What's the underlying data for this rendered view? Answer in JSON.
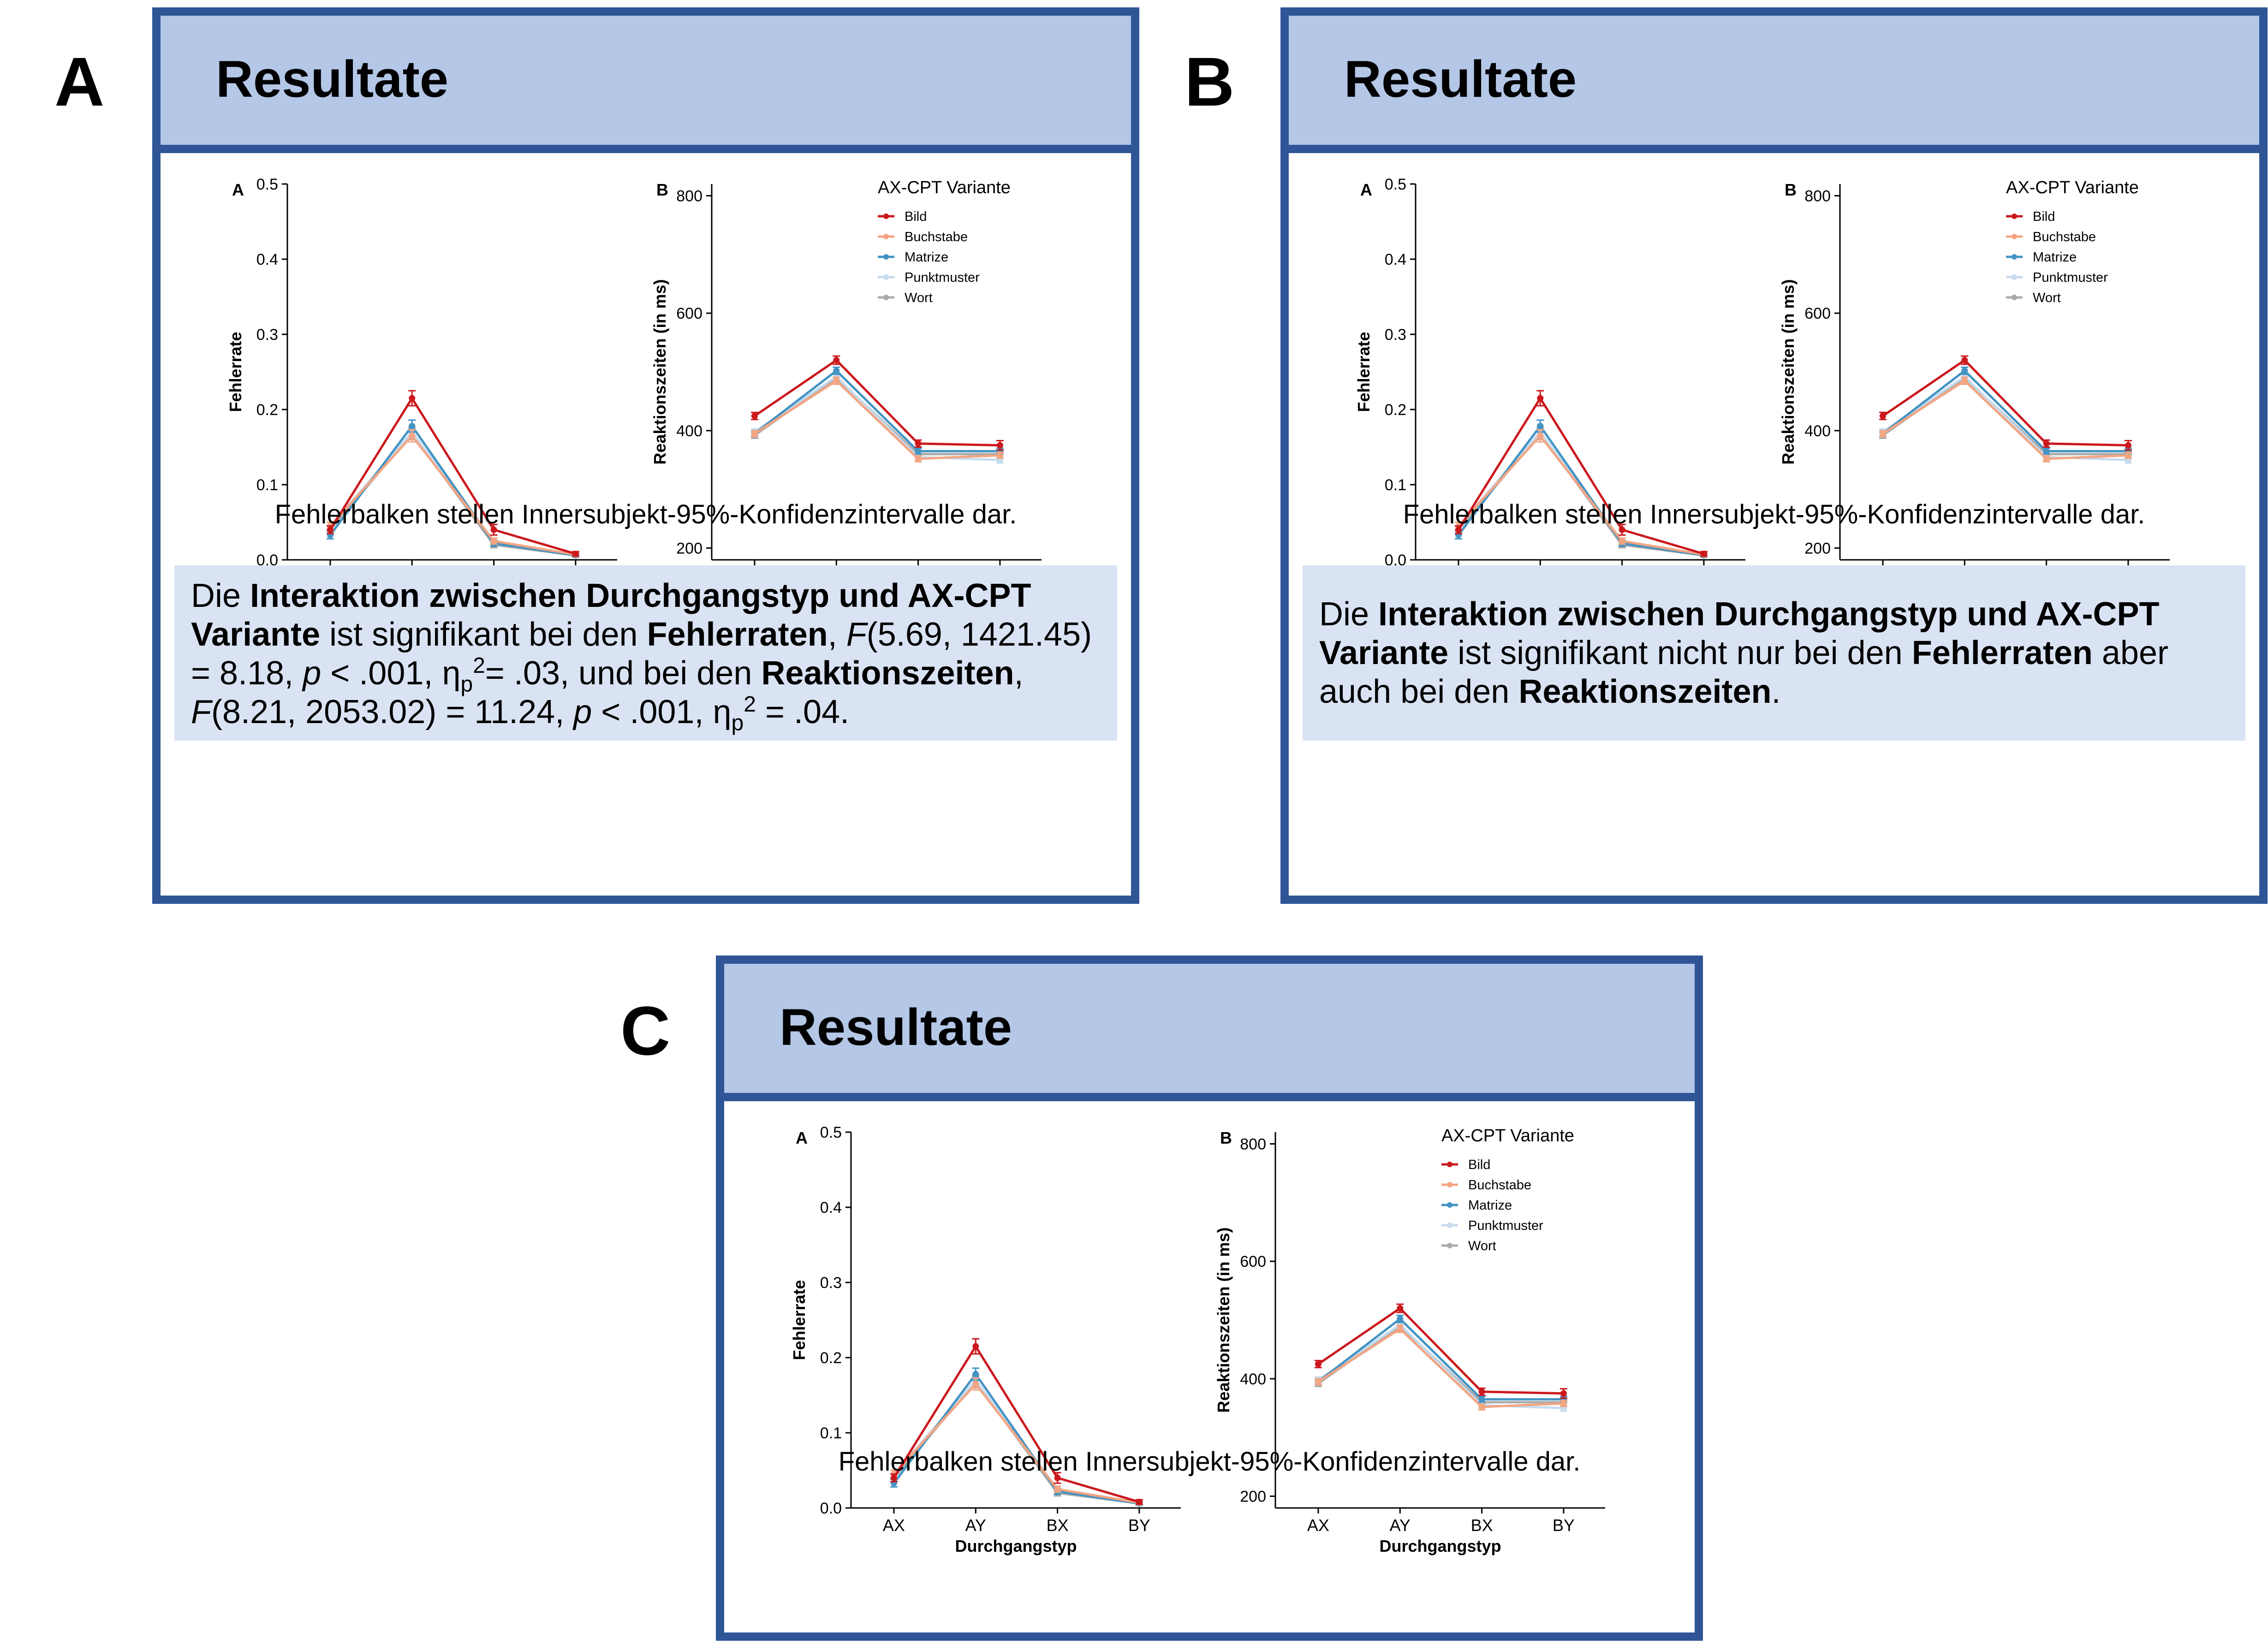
{
  "panels": [
    {
      "letter": "A",
      "title": "Resultate",
      "caption": "Fehlerbalken stellen Innersubjekt-95%-Konfidenzintervalle dar.",
      "result_parts": [
        {
          "t": "Die ",
          "s": "n"
        },
        {
          "t": "Interaktion zwischen Durchgangstyp und AX-CPT Variante",
          "s": "b"
        },
        {
          "t": " ist signifikant bei den ",
          "s": "n"
        },
        {
          "t": "Fehlerraten",
          "s": "b"
        },
        {
          "t": ", ",
          "s": "n"
        },
        {
          "t": "F",
          "s": "i"
        },
        {
          "t": "(5.69, 1421.45) = 8.18, ",
          "s": "n"
        },
        {
          "t": "p",
          "s": "i"
        },
        {
          "t": " < .001, η",
          "s": "n"
        },
        {
          "t": "p",
          "s": "sub"
        },
        {
          "t": "2",
          "s": "sup"
        },
        {
          "t": "= .03, und bei den ",
          "s": "n"
        },
        {
          "t": "Reaktionszeiten",
          "s": "b"
        },
        {
          "t": ", ",
          "s": "n"
        },
        {
          "t": "F",
          "s": "i"
        },
        {
          "t": "(8.21, 2053.02) = 11.24, ",
          "s": "n"
        },
        {
          "t": "p",
          "s": "i"
        },
        {
          "t": " < .001, η",
          "s": "n"
        },
        {
          "t": "p",
          "s": "sub"
        },
        {
          "t": "2",
          "s": "sup"
        },
        {
          "t": " = .04.",
          "s": "n"
        }
      ]
    },
    {
      "letter": "B",
      "title": "Resultate",
      "caption": "Fehlerbalken stellen Innersubjekt-95%-Konfidenzintervalle dar.",
      "result_parts": [
        {
          "t": "Die ",
          "s": "n"
        },
        {
          "t": "Interaktion zwischen Durchgangstyp und AX-CPT Variante",
          "s": "b"
        },
        {
          "t": " ist signifikant nicht nur bei den ",
          "s": "n"
        },
        {
          "t": "Fehlerraten",
          "s": "b"
        },
        {
          "t": " aber auch bei den ",
          "s": "n"
        },
        {
          "t": "Reaktionszeiten",
          "s": "b"
        },
        {
          "t": ".",
          "s": "n"
        }
      ]
    },
    {
      "letter": "C",
      "title": "Resultate",
      "caption": "Fehlerbalken stellen Innersubjekt-95%-Konfidenzintervalle dar.",
      "result_parts": []
    }
  ],
  "series_colors": {
    "Bild": "#cb181d",
    "Buchstabe": "#f4a582",
    "Matrize": "#4393c3",
    "Punktmuster": "#c6dbef",
    "Wort": "#aaaaaa"
  },
  "chart_data": [
    {
      "type": "line",
      "panel_label": "A",
      "categories": [
        "AX",
        "AY",
        "BX",
        "BY"
      ],
      "xlabel": "Durchgangstyp",
      "ylabel": "Fehlerrate",
      "ylim": [
        0,
        0.5
      ],
      "yticks": [
        "0.0",
        "0.1",
        "0.2",
        "0.3",
        "0.4",
        "0.5"
      ],
      "ytick_values": [
        0,
        0.1,
        0.2,
        0.3,
        0.4,
        0.5
      ],
      "legend": null,
      "series": [
        {
          "name": "Bild",
          "values": [
            0.04,
            0.215,
            0.04,
            0.008
          ],
          "err": [
            0.005,
            0.01,
            0.007,
            0.003
          ]
        },
        {
          "name": "Buchstabe",
          "values": [
            0.045,
            0.165,
            0.025,
            0.007
          ],
          "err": [
            0.005,
            0.008,
            0.004,
            0.002
          ]
        },
        {
          "name": "Matrize",
          "values": [
            0.033,
            0.178,
            0.022,
            0.006
          ],
          "err": [
            0.005,
            0.008,
            0.004,
            0.002
          ]
        },
        {
          "name": "Punktmuster",
          "values": [
            0.045,
            0.17,
            0.025,
            0.007
          ],
          "err": [
            0.005,
            0.008,
            0.004,
            0.002
          ]
        },
        {
          "name": "Wort",
          "values": [
            0.04,
            0.168,
            0.02,
            0.006
          ],
          "err": [
            0.005,
            0.008,
            0.004,
            0.002
          ]
        }
      ]
    },
    {
      "type": "line",
      "panel_label": "B",
      "categories": [
        "AX",
        "AY",
        "BX",
        "BY"
      ],
      "xlabel": "Durchgangstyp",
      "ylabel": "Reaktionszeiten (in ms)",
      "ylim": [
        180,
        820
      ],
      "yticks": [
        "200",
        "400",
        "600",
        "800"
      ],
      "ytick_values": [
        200,
        400,
        600,
        800
      ],
      "legend": {
        "title": "AX-CPT Variante",
        "position": "top-right",
        "entries": [
          "Bild",
          "Buchstabe",
          "Matrize",
          "Punktmuster",
          "Wort"
        ]
      },
      "series": [
        {
          "name": "Bild",
          "values": [
            425,
            520,
            378,
            375
          ],
          "err": [
            6,
            7,
            6,
            8
          ]
        },
        {
          "name": "Buchstabe",
          "values": [
            395,
            485,
            352,
            358
          ],
          "err": [
            5,
            6,
            5,
            5
          ]
        },
        {
          "name": "Matrize",
          "values": [
            395,
            502,
            365,
            365
          ],
          "err": [
            5,
            6,
            5,
            5
          ]
        },
        {
          "name": "Punktmuster",
          "values": [
            398,
            492,
            355,
            350
          ],
          "err": [
            5,
            6,
            5,
            5
          ]
        },
        {
          "name": "Wort",
          "values": [
            392,
            490,
            360,
            360
          ],
          "err": [
            5,
            6,
            5,
            5
          ]
        }
      ]
    }
  ]
}
